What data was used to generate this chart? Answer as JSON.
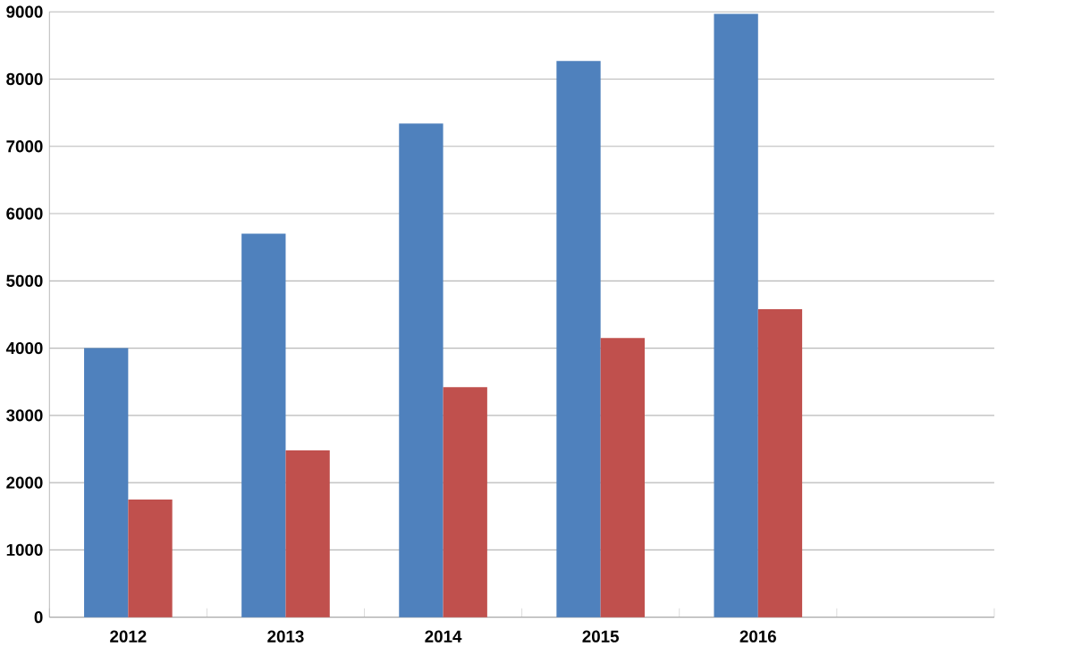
{
  "chart_data": {
    "type": "bar",
    "categories": [
      "2012",
      "2013",
      "2014",
      "2015",
      "2016",
      null
    ],
    "series": [
      {
        "color": "#4f81bd",
        "values": [
          4000,
          5700,
          7340,
          8270,
          8970,
          null
        ]
      },
      {
        "color": "#c0504d",
        "values": [
          1750,
          2480,
          3420,
          4150,
          4580,
          null
        ]
      }
    ],
    "ylim": [
      0,
      9000
    ],
    "yticks": [
      0,
      1000,
      2000,
      3000,
      4000,
      5000,
      6000,
      7000,
      8000,
      9000
    ],
    "grid": "y"
  }
}
